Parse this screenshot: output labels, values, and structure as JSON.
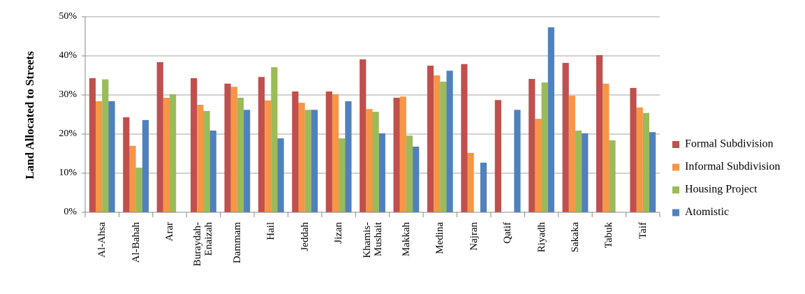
{
  "chart_data": {
    "type": "bar",
    "y_label": "Land Allocated to Streets",
    "categories": [
      "Al-Ahsa",
      "Al-Bahah",
      "Arar",
      "Buraydah-\nEnaizah",
      "Dammam",
      "Hail",
      "Jeddah",
      "Jizan",
      "Khamis-\nMushait",
      "Makkah",
      "Medina",
      "Najran",
      "Qatif",
      "Riyadh",
      "Sakaka",
      "Tabuk",
      "Taif"
    ],
    "series": [
      {
        "name": "Formal Subdivision",
        "color": "#c0504d",
        "values": [
          34.3,
          24.3,
          38.4,
          34.3,
          32.9,
          34.6,
          30.9,
          30.9,
          39.1,
          29.3,
          37.5,
          37.9,
          28.7,
          34.1,
          38.2,
          40.2,
          31.8
        ]
      },
      {
        "name": "Informal Subdivision",
        "color": "#f79646",
        "values": [
          28.4,
          17,
          29.3,
          27.5,
          32.1,
          28.6,
          28,
          30.2,
          26.4,
          29.6,
          35,
          15.2,
          null,
          23.9,
          29.8,
          32.9,
          26.8
        ]
      },
      {
        "name": "Housing Project",
        "color": "#9bbb59",
        "values": [
          34,
          11.4,
          30.2,
          25.9,
          29.3,
          37.1,
          26.2,
          18.9,
          25.7,
          19.6,
          33.4,
          null,
          null,
          33.2,
          20.9,
          18.4,
          25.4
        ]
      },
      {
        "name": "Atomistic",
        "color": "#4f81bd",
        "values": [
          28.4,
          23.6,
          null,
          20.9,
          26.2,
          18.9,
          26.2,
          28.4,
          20.2,
          16.8,
          36.2,
          12.7,
          26.2,
          47.3,
          20.2,
          null,
          20.5
        ]
      }
    ],
    "ylim": [
      0,
      50
    ],
    "yticks": [
      {
        "value": 0,
        "label": "0%"
      },
      {
        "value": 10,
        "label": "10%"
      },
      {
        "value": 20,
        "label": "20%"
      },
      {
        "value": 30,
        "label": "30%"
      },
      {
        "value": 40,
        "label": "40%"
      },
      {
        "value": 50,
        "label": "50%"
      }
    ],
    "grid": true,
    "legend": "right"
  }
}
